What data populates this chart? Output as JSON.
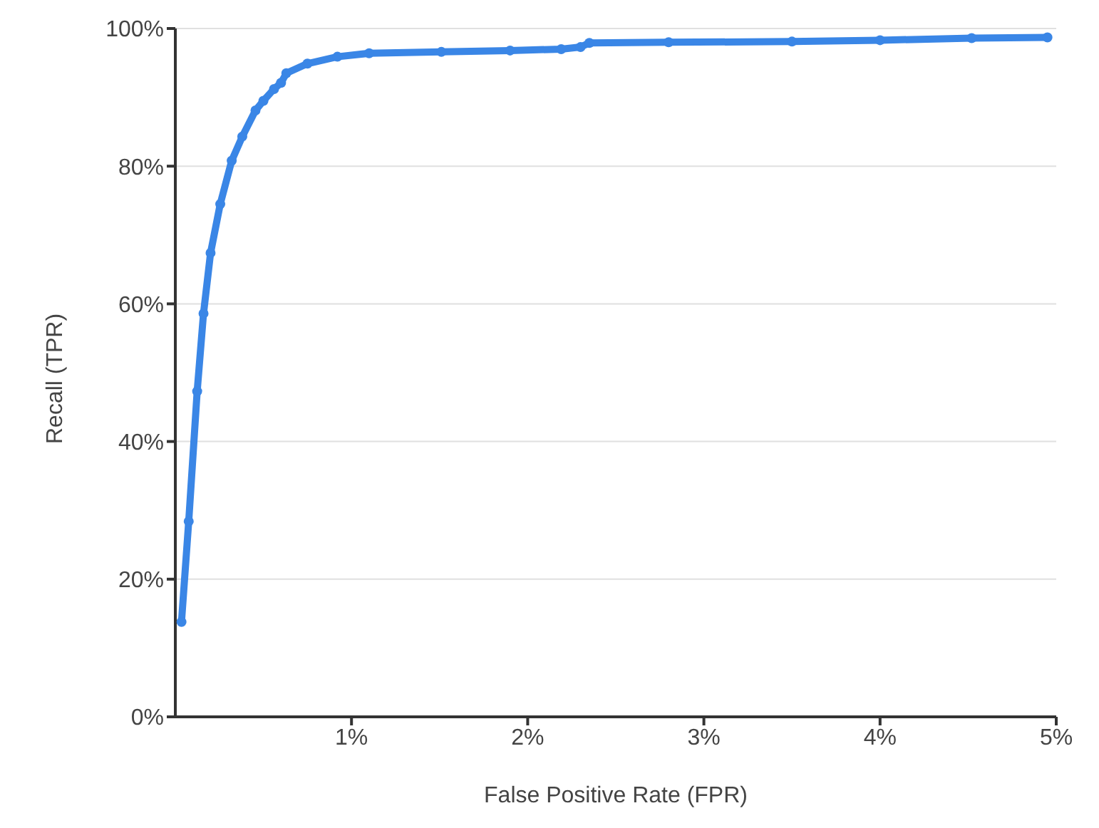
{
  "chart_data": {
    "type": "line",
    "xlabel": "False Positive Rate (FPR)",
    "ylabel": "Recall (TPR)",
    "series": [
      {
        "color": "#3a86e6",
        "x": [
          0.035,
          0.076,
          0.124,
          0.16,
          0.2,
          0.255,
          0.32,
          0.38,
          0.455,
          0.5,
          0.56,
          0.6,
          0.63,
          0.75,
          0.92,
          1.1,
          1.51,
          1.9,
          2.19,
          2.3,
          2.35,
          2.8,
          3.5,
          4.0,
          4.52,
          4.95
        ],
        "values": [
          13.8,
          28.4,
          47.3,
          58.6,
          67.4,
          74.5,
          80.8,
          84.3,
          88.1,
          89.5,
          91.2,
          92.1,
          93.5,
          94.9,
          95.9,
          96.4,
          96.6,
          96.8,
          97.0,
          97.3,
          97.9,
          98.0,
          98.1,
          98.3,
          98.6,
          98.7
        ]
      }
    ],
    "xlim": [
      0,
      5
    ],
    "xticks": [
      {
        "value": 1,
        "label": "1%"
      },
      {
        "value": 2,
        "label": "2%"
      },
      {
        "value": 3,
        "label": "3%"
      },
      {
        "value": 4,
        "label": "4%"
      },
      {
        "value": 5,
        "label": "5%"
      }
    ],
    "ylim": [
      0,
      100
    ],
    "yticks": [
      {
        "value": 0,
        "label": "0%"
      },
      {
        "value": 20,
        "label": "20%"
      },
      {
        "value": 40,
        "label": "40%"
      },
      {
        "value": 60,
        "label": "60%"
      },
      {
        "value": 80,
        "label": "80%"
      },
      {
        "value": 100,
        "label": "100%"
      }
    ],
    "grid": "y",
    "marker": "circle",
    "line_style": "solid",
    "legend": false
  }
}
